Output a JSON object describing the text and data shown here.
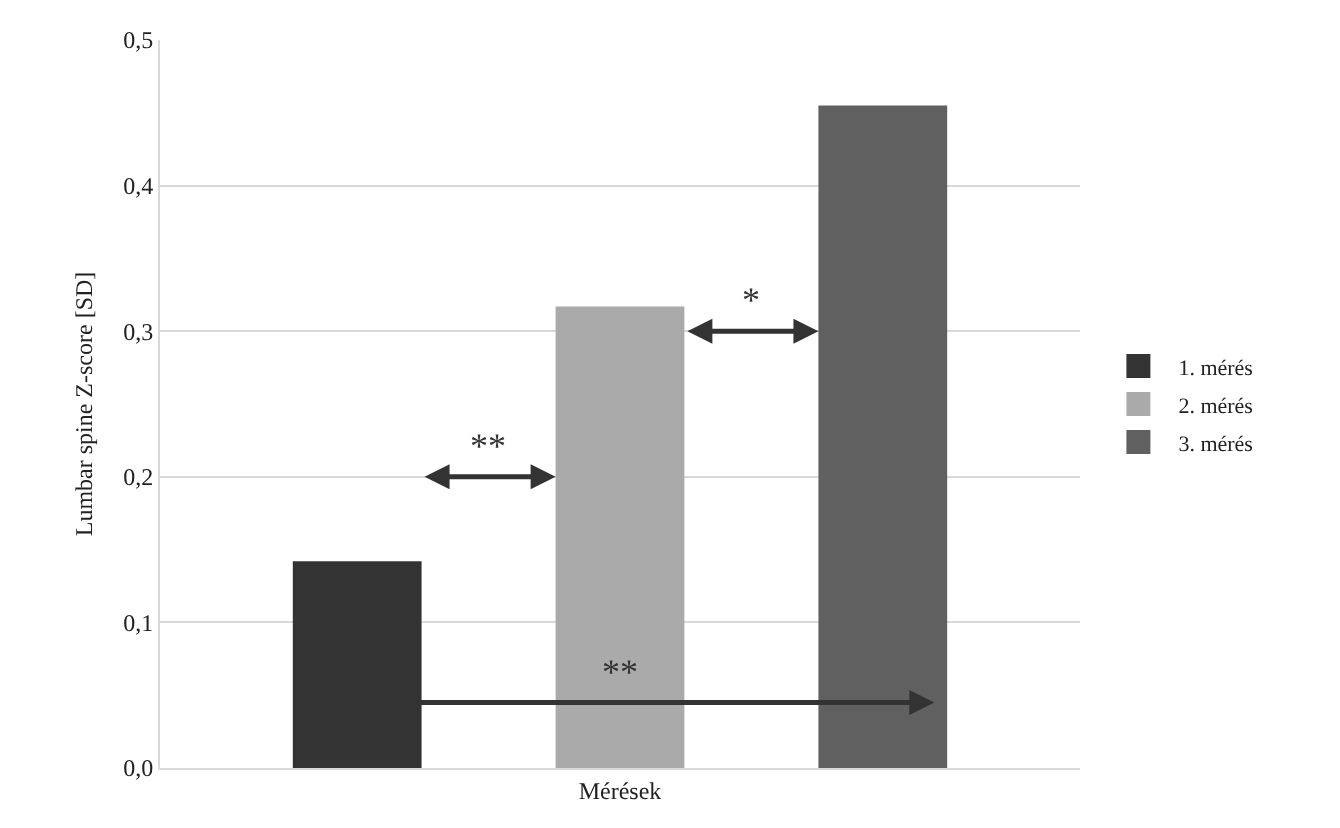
{
  "chart_data": {
    "type": "bar",
    "ylabel": "Lumbar spine Z-score [SD]",
    "categories": [
      "Mérések"
    ],
    "series": [
      {
        "name": "1. mérés",
        "color": "#333333",
        "values": [
          0.142
        ]
      },
      {
        "name": "2. mérés",
        "color": "#aaaaaa",
        "values": [
          0.317
        ]
      },
      {
        "name": "3. mérés",
        "color": "#606060",
        "values": [
          0.455
        ]
      }
    ],
    "ylim": [
      0,
      0.5
    ],
    "yticks": [
      {
        "value": 0,
        "label": "0,0"
      },
      {
        "value": 0.1,
        "label": "0,1"
      },
      {
        "value": 0.2,
        "label": "0,2"
      },
      {
        "value": 0.3,
        "label": "0,3"
      },
      {
        "value": 0.4,
        "label": "0,4"
      },
      {
        "value": 0.5,
        "label": "0,5"
      }
    ],
    "grid": "y",
    "legend": "right",
    "annotations": [
      "**",
      "*",
      "**"
    ]
  }
}
